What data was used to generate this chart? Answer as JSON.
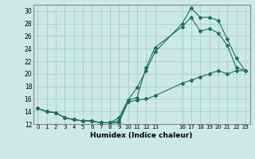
{
  "xlabel": "Humidex (Indice chaleur)",
  "ylabel": "",
  "bg_color": "#cce8e8",
  "grid_color": "#aacccc",
  "line_color": "#1a6e6a",
  "xlim": [
    -0.5,
    23.5
  ],
  "ylim": [
    12,
    31
  ],
  "xtick_positions": [
    0,
    1,
    2,
    3,
    4,
    5,
    6,
    7,
    8,
    9,
    10,
    11,
    12,
    13,
    16,
    17,
    18,
    19,
    20,
    21,
    22,
    23
  ],
  "xtick_labels": [
    "0",
    "1",
    "2",
    "3",
    "4",
    "5",
    "6",
    "7",
    "8",
    "9",
    "10",
    "11",
    "12",
    "13",
    "16",
    "17",
    "18",
    "19",
    "20",
    "21",
    "22",
    "23"
  ],
  "ytick_positions": [
    12,
    14,
    16,
    18,
    20,
    22,
    24,
    26,
    28,
    30
  ],
  "ytick_labels": [
    "12",
    "14",
    "16",
    "18",
    "20",
    "22",
    "24",
    "26",
    "28",
    "30"
  ],
  "series": [
    {
      "x": [
        0,
        1,
        2,
        3,
        4,
        5,
        6,
        7,
        8,
        9,
        10,
        11,
        12,
        13,
        16,
        17,
        18,
        19,
        20,
        21,
        22,
        23
      ],
      "y": [
        14.5,
        14.0,
        13.8,
        13.0,
        12.7,
        12.5,
        12.5,
        12.2,
        12.2,
        12.5,
        15.8,
        17.8,
        20.5,
        23.5,
        28.0,
        30.5,
        29.0,
        29.0,
        28.5,
        25.5,
        22.5,
        20.5
      ]
    },
    {
      "x": [
        0,
        1,
        2,
        3,
        4,
        5,
        6,
        7,
        8,
        9,
        10,
        11,
        12,
        13,
        16,
        17,
        18,
        19,
        20,
        21,
        22,
        23
      ],
      "y": [
        14.5,
        14.0,
        13.8,
        13.0,
        12.7,
        12.5,
        12.5,
        12.2,
        12.2,
        13.0,
        15.8,
        16.2,
        21.0,
        24.2,
        27.5,
        29.0,
        26.8,
        27.2,
        26.5,
        24.5,
        21.0,
        20.5
      ]
    },
    {
      "x": [
        0,
        1,
        2,
        3,
        4,
        5,
        6,
        7,
        8,
        9,
        10,
        11,
        12,
        13,
        16,
        17,
        18,
        19,
        20,
        21,
        22,
        23
      ],
      "y": [
        14.5,
        14.0,
        13.8,
        13.0,
        12.7,
        12.5,
        12.5,
        12.2,
        12.2,
        12.2,
        15.5,
        15.8,
        16.0,
        16.5,
        18.5,
        19.0,
        19.5,
        20.0,
        20.5,
        20.0,
        20.5,
        20.5
      ]
    }
  ]
}
